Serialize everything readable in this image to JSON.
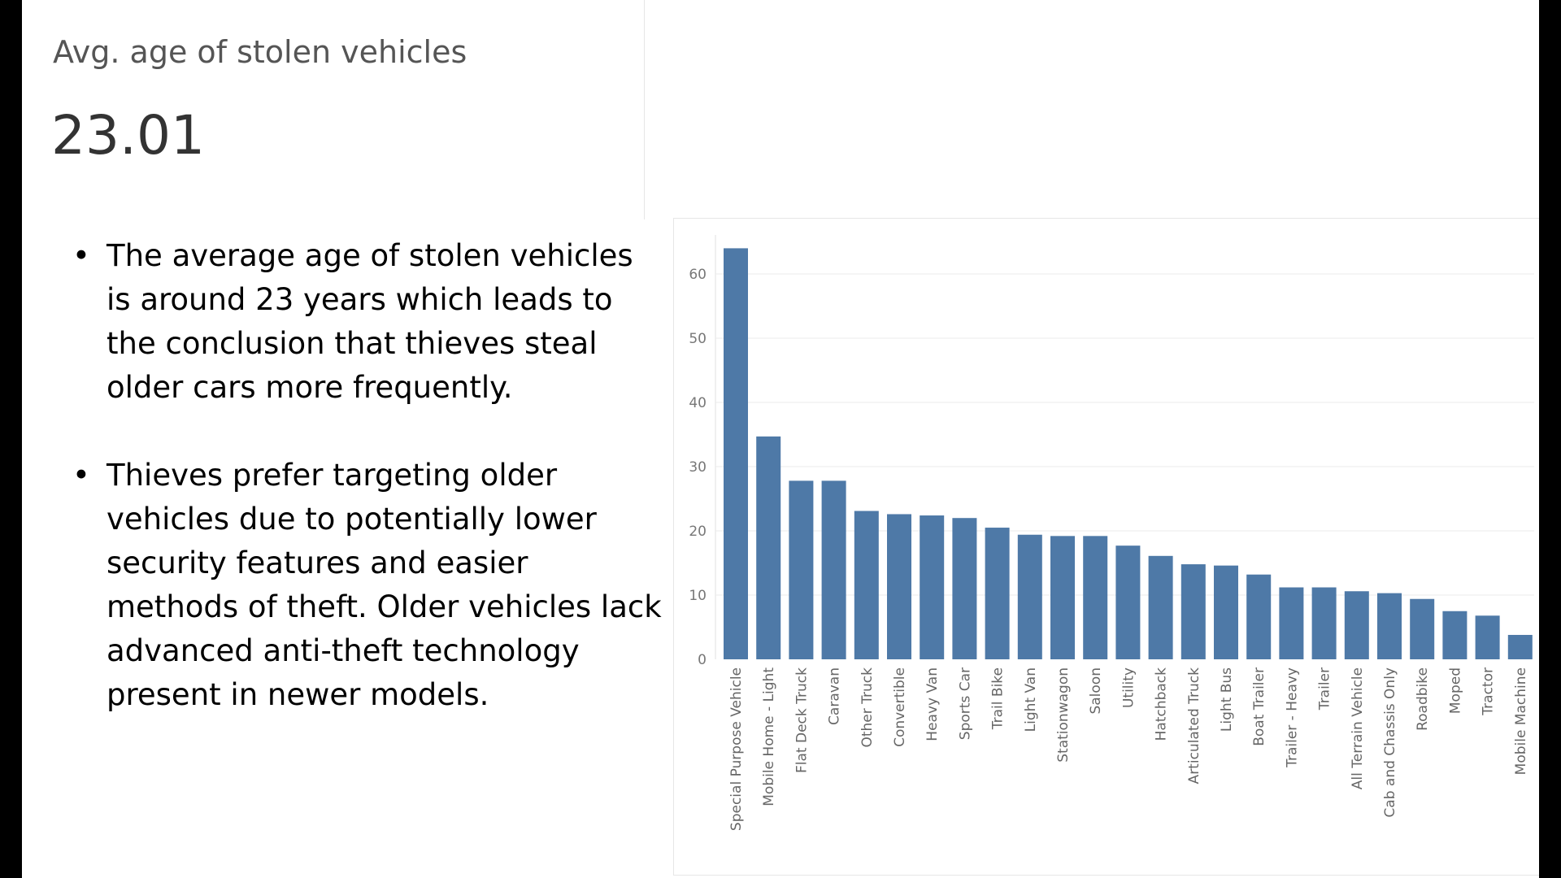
{
  "kpi": {
    "title": "Avg. age of stolen vehicles",
    "value": "23.01"
  },
  "bullets": [
    "The average age of stolen vehicles is around 23 years which leads to the conclusion that thieves steal older cars more frequently.",
    "Thieves prefer targeting older vehicles due to potentially lower security features and easier methods of theft. Older vehicles lack advanced anti-theft technology present in newer models."
  ],
  "bullet_symbol": "•",
  "colors": {
    "bar": "#4e79a7",
    "grid": "#ebebeb",
    "axis_text": "#777777",
    "category_text": "#666666"
  },
  "chart_data": {
    "type": "bar",
    "categories": [
      "Special Purpose Vehicle",
      "Mobile Home - Light",
      "Flat Deck Truck",
      "Caravan",
      "Other Truck",
      "Convertible",
      "Heavy Van",
      "Sports Car",
      "Trail Bike",
      "Light Van",
      "Stationwagon",
      "Saloon",
      "Utility",
      "Hatchback",
      "Articulated Truck",
      "Light Bus",
      "Boat Trailer",
      "Trailer - Heavy",
      "Trailer",
      "All Terrain Vehicle",
      "Cab and Chassis Only",
      "Roadbike",
      "Moped",
      "Tractor",
      "Mobile Machine"
    ],
    "values": [
      64,
      34.7,
      27.8,
      27.8,
      23.1,
      22.6,
      22.4,
      22,
      20.5,
      19.4,
      19.2,
      19.2,
      17.7,
      16.1,
      14.8,
      14.6,
      13.2,
      11.2,
      11.2,
      10.6,
      10.3,
      9.4,
      7.5,
      6.8,
      3.8
    ],
    "yticks": [
      0,
      10,
      20,
      30,
      40,
      50,
      60
    ],
    "ylim": [
      0,
      66
    ],
    "grid": true,
    "xlabel": "",
    "ylabel": ""
  }
}
